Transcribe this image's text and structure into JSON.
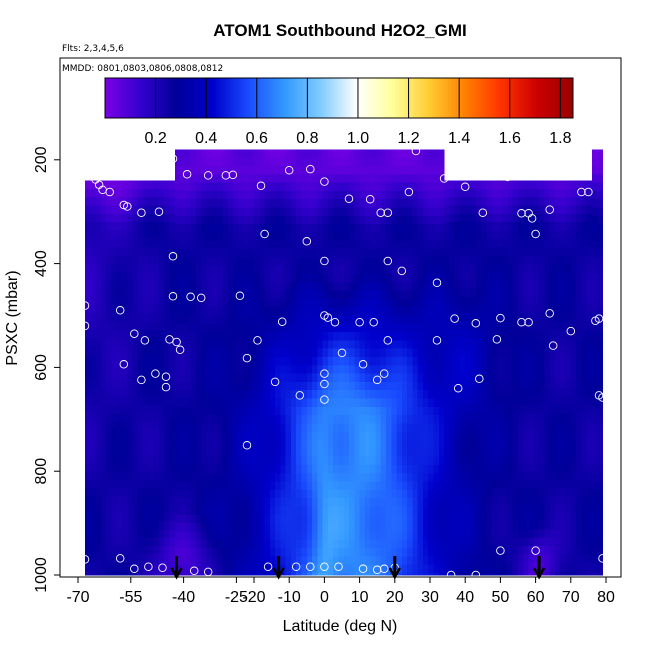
{
  "chart_data": {
    "type": "heatmap",
    "title": "ATOM1 Southbound H2O2_GMI",
    "subtitle_flights": "Flts: 2,3,4,5,6",
    "subtitle_dates": "MMDD: 0801,0803,0806,0808,0812",
    "xlabel": "Latitude (deg N)",
    "ylabel": "PSXC (mbar)",
    "xlim": [
      -70,
      80
    ],
    "ylim": [
      1000,
      0
    ],
    "x_tick_labels": [
      {
        "value": -70,
        "label": "-70"
      },
      {
        "value": -55,
        "label": "-55"
      },
      {
        "value": -40,
        "label": "-40"
      },
      {
        "value": -25,
        "label": "-25"
      },
      {
        "value": -20,
        "label": "-20"
      },
      {
        "value": -10,
        "label": "-10"
      },
      {
        "value": 0,
        "label": "0"
      },
      {
        "value": 10,
        "label": "10"
      },
      {
        "value": 20,
        "label": "20"
      },
      {
        "value": 30,
        "label": "30"
      },
      {
        "value": 40,
        "label": "40"
      },
      {
        "value": 50,
        "label": "50"
      },
      {
        "value": 60,
        "label": "60"
      },
      {
        "value": 70,
        "label": "70"
      },
      {
        "value": 80,
        "label": "80"
      }
    ],
    "y_ticks": [
      200,
      400,
      600,
      800,
      1000
    ],
    "colorbar": {
      "range": [
        0.0,
        1.85
      ],
      "ticks": [
        0.2,
        0.4,
        0.6,
        0.8,
        1.0,
        1.2,
        1.4,
        1.6,
        1.8
      ],
      "tick_labels": [
        "0.2",
        "0.4",
        "0.6",
        "0.8",
        "1.0",
        "1.2",
        "1.4",
        "1.6",
        "1.8"
      ],
      "colors": [
        "#7a00e6",
        "#3300cc",
        "#000099",
        "#0000cc",
        "#1a4dff",
        "#3399ff",
        "#80ccff",
        "#ffffff",
        "#ffff99",
        "#ffcc33",
        "#ff8000",
        "#ff3300",
        "#cc0000",
        "#990000"
      ]
    },
    "field": {
      "latitude_range": [
        -68,
        78
      ],
      "pressure_range": [
        180,
        1000
      ],
      "top_trim": [
        {
          "from": -68,
          "to": -43,
          "top": 240
        },
        {
          "from": -43,
          "to": 34,
          "top": 180
        },
        {
          "from": 34,
          "to": 76,
          "top": 240
        }
      ],
      "description": "H2O2 field: background ~0.25 (navy/blue), enhanced ~0.6-0.7 in tropics below 500 mbar, low ~0.05 (purple) in upper troposphere and southern edge"
    },
    "samples": [
      {
        "lat": -67,
        "p": 228
      },
      {
        "lat": -66,
        "p": 232
      },
      {
        "lat": -65,
        "p": 238
      },
      {
        "lat": -64,
        "p": 248
      },
      {
        "lat": -63,
        "p": 258
      },
      {
        "lat": -61,
        "p": 262
      },
      {
        "lat": -57,
        "p": 287
      },
      {
        "lat": -56,
        "p": 290
      },
      {
        "lat": -52,
        "p": 302
      },
      {
        "lat": -47,
        "p": 300
      },
      {
        "lat": -43,
        "p": 198
      },
      {
        "lat": -39,
        "p": 228
      },
      {
        "lat": -33,
        "p": 230
      },
      {
        "lat": -28,
        "p": 230
      },
      {
        "lat": -26,
        "p": 229
      },
      {
        "lat": -18,
        "p": 250
      },
      {
        "lat": -10,
        "p": 220
      },
      {
        "lat": -4,
        "p": 218
      },
      {
        "lat": 0,
        "p": 242
      },
      {
        "lat": 7,
        "p": 275
      },
      {
        "lat": 13,
        "p": 276
      },
      {
        "lat": 16,
        "p": 302
      },
      {
        "lat": 18,
        "p": 302
      },
      {
        "lat": 24,
        "p": 262
      },
      {
        "lat": 26,
        "p": 183
      },
      {
        "lat": 34,
        "p": 236
      },
      {
        "lat": 40,
        "p": 252
      },
      {
        "lat": 52,
        "p": 233
      },
      {
        "lat": 56,
        "p": 303
      },
      {
        "lat": 58,
        "p": 303
      },
      {
        "lat": 59,
        "p": 313
      },
      {
        "lat": 60,
        "p": 343
      },
      {
        "lat": 64,
        "p": 296
      },
      {
        "lat": 66,
        "p": 223
      },
      {
        "lat": 73,
        "p": 262
      },
      {
        "lat": 75,
        "p": 262
      },
      {
        "lat": 45,
        "p": 302
      },
      {
        "lat": -17,
        "p": 343
      },
      {
        "lat": -5,
        "p": 357
      },
      {
        "lat": 0,
        "p": 395
      },
      {
        "lat": -43,
        "p": 386
      },
      {
        "lat": 18,
        "p": 395
      },
      {
        "lat": 22,
        "p": 414
      },
      {
        "lat": 32,
        "p": 437
      },
      {
        "lat": -43,
        "p": 463
      },
      {
        "lat": -38,
        "p": 464
      },
      {
        "lat": -35,
        "p": 466
      },
      {
        "lat": -24,
        "p": 462
      },
      {
        "lat": -68,
        "p": 481
      },
      {
        "lat": -68,
        "p": 520
      },
      {
        "lat": -58,
        "p": 490
      },
      {
        "lat": -54,
        "p": 535
      },
      {
        "lat": -51,
        "p": 548
      },
      {
        "lat": -44,
        "p": 546
      },
      {
        "lat": -42,
        "p": 551
      },
      {
        "lat": -41,
        "p": 566
      },
      {
        "lat": -19,
        "p": 548
      },
      {
        "lat": -12,
        "p": 512
      },
      {
        "lat": 0,
        "p": 500
      },
      {
        "lat": 1,
        "p": 504
      },
      {
        "lat": 3,
        "p": 513
      },
      {
        "lat": 10,
        "p": 513
      },
      {
        "lat": 14,
        "p": 513
      },
      {
        "lat": 18,
        "p": 548
      },
      {
        "lat": 32,
        "p": 548
      },
      {
        "lat": 37,
        "p": 506
      },
      {
        "lat": 43,
        "p": 515
      },
      {
        "lat": 49,
        "p": 546
      },
      {
        "lat": 50,
        "p": 505
      },
      {
        "lat": 56,
        "p": 513
      },
      {
        "lat": 58,
        "p": 513
      },
      {
        "lat": 64,
        "p": 496
      },
      {
        "lat": 65,
        "p": 558
      },
      {
        "lat": 70,
        "p": 530
      },
      {
        "lat": 77,
        "p": 510
      },
      {
        "lat": 78,
        "p": 506
      },
      {
        "lat": -57,
        "p": 594
      },
      {
        "lat": -52,
        "p": 624
      },
      {
        "lat": -48,
        "p": 612
      },
      {
        "lat": -45,
        "p": 618
      },
      {
        "lat": -45,
        "p": 638
      },
      {
        "lat": -22,
        "p": 582
      },
      {
        "lat": -14,
        "p": 628
      },
      {
        "lat": -7,
        "p": 654
      },
      {
        "lat": 0,
        "p": 612
      },
      {
        "lat": 0,
        "p": 632
      },
      {
        "lat": 0,
        "p": 662
      },
      {
        "lat": 5,
        "p": 572
      },
      {
        "lat": 11,
        "p": 594
      },
      {
        "lat": 15,
        "p": 624
      },
      {
        "lat": 17,
        "p": 612
      },
      {
        "lat": 38,
        "p": 640
      },
      {
        "lat": 44,
        "p": 622
      },
      {
        "lat": 78,
        "p": 654
      },
      {
        "lat": 79,
        "p": 658
      },
      {
        "lat": -22,
        "p": 750
      },
      {
        "lat": -68,
        "p": 970
      },
      {
        "lat": -58,
        "p": 968
      },
      {
        "lat": -54,
        "p": 988
      },
      {
        "lat": -50,
        "p": 984
      },
      {
        "lat": -46,
        "p": 986
      },
      {
        "lat": -37,
        "p": 992
      },
      {
        "lat": -33,
        "p": 994
      },
      {
        "lat": -16,
        "p": 984
      },
      {
        "lat": -8,
        "p": 984
      },
      {
        "lat": -4,
        "p": 984
      },
      {
        "lat": 0,
        "p": 984
      },
      {
        "lat": 4,
        "p": 984
      },
      {
        "lat": 11,
        "p": 988
      },
      {
        "lat": 15,
        "p": 990
      },
      {
        "lat": 17,
        "p": 988
      },
      {
        "lat": 20,
        "p": 986
      },
      {
        "lat": 36,
        "p": 1000
      },
      {
        "lat": 43,
        "p": 1000
      },
      {
        "lat": 50,
        "p": 953
      },
      {
        "lat": 60,
        "p": 953
      },
      {
        "lat": 79,
        "p": 968
      }
    ],
    "arrows_latitudes": [
      -42,
      -13,
      20,
      61
    ]
  }
}
